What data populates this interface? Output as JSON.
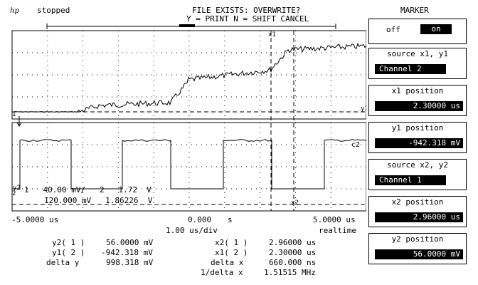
{
  "header": {
    "logo": "hp",
    "status": "stopped",
    "message_line1": "FILE EXISTS: OVERWRITE?",
    "message_line2": "Y = PRINT N = SHIFT CANCEL"
  },
  "marker_panel": {
    "title": "MARKER",
    "toggle_off": "off",
    "toggle_on": "on",
    "source_x1y1_title": "source x1, y1",
    "source_x1y1_value": "Channel 2",
    "x1_title": "x1 position",
    "x1_value": "2.30000 us",
    "y1_title": "y1 position",
    "y1_value": "-942.318 mV",
    "source_x2y2_title": "source x2, y2",
    "source_x2y2_value": "Channel 1",
    "x2_title": "x2 position",
    "x2_value": "2.96000 us",
    "y2_title": "y2 position",
    "y2_value": "56.0000 mV"
  },
  "graticule": {
    "x_left": "-5.0000 us",
    "x_center": "0.000",
    "x_center_unit": "s",
    "x_right": "5.0000 us",
    "timebase": "1.00 us/div",
    "mode": "realtime",
    "ch_scale_line1": "1   40.00 mV/   2   1.72  V",
    "ch_scale_line2": "120.000 mV   1.86226  V",
    "marker_x1": "x1",
    "marker_x2": "x2",
    "marker_y1": "y1",
    "marker_y2": "y2",
    "c2_label": "c2",
    "ch1_label": "1",
    "ch2_label": "2"
  },
  "readouts": {
    "y2_label": "y2( 1 )",
    "y2_value": "56.0000 mV",
    "y1_label": "y1( 2 )",
    "y1_value": "-942.318 mV",
    "dy_label": "delta y",
    "dy_value": "998.318 mV",
    "x2_label": "x2( 1 )",
    "x2_value": "2.96000 us",
    "x1_label": "x1( 2 )",
    "x1_value": "2.30000 us",
    "dx_label": "delta x",
    "dx_value": "660.000 ns",
    "inv_dx_label": "1/delta x",
    "inv_dx_value": "1.51515 MHz"
  },
  "colors": {
    "foreground": "#000000",
    "background": "#ffffff"
  }
}
